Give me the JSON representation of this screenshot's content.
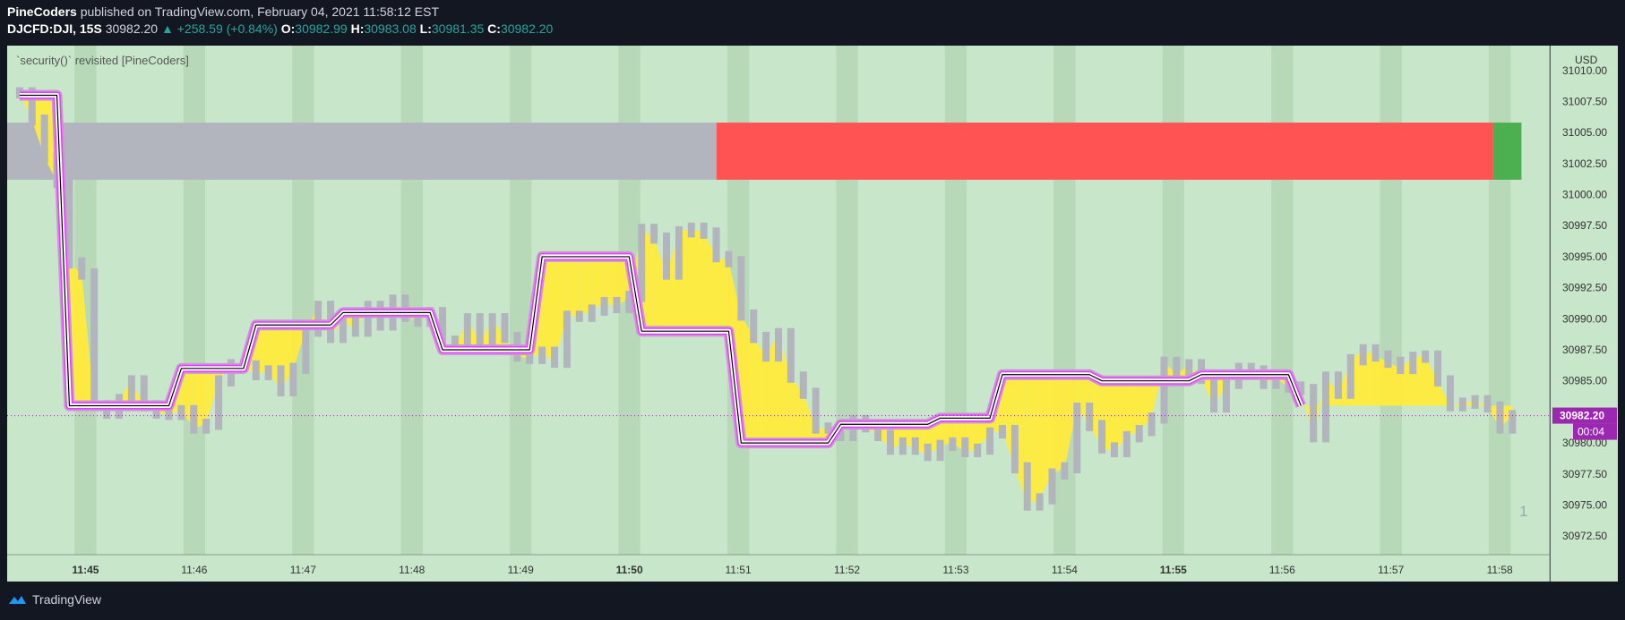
{
  "header": {
    "publisher": "PineCoders",
    "published_text": "published on TradingView.com, February 04, 2021 11:58:12 EST",
    "symbol": "DJCFD:DJI, 15S",
    "last_price": "30982.20",
    "change": "▲ +258.59 (+0.84%)",
    "open_label": "O:",
    "open": "30982.99",
    "high_label": "H:",
    "high": "30983.08",
    "low_label": "L:",
    "low": "30981.35",
    "close_label": "C:",
    "close": "30982.20"
  },
  "indicator_title": "`security()` revisited [PineCoders]",
  "price_scale": {
    "currency": "USD",
    "last_price_tag": "30982.20",
    "countdown_tag": "00:04"
  },
  "marker_label": "1",
  "footer": {
    "brand": "TradingView"
  },
  "colors": {
    "background": "#c8e6c9",
    "band": "#b7d9b8",
    "bars": "#b2b5be",
    "fill": "#ffeb3b",
    "line_outer": "#ce93d8",
    "line_mid": "#e040fb",
    "line_inner": "#ffffff",
    "line_core": "#000000",
    "status_gray": "#b2b5be",
    "status_red": "#ff5252",
    "status_green": "#4caf50",
    "price_tag": "#9c27b0"
  },
  "chart_data": {
    "type": "line",
    "title": "`security()` revisited [PineCoders]",
    "symbol": "DJCFD:DJI",
    "interval": "15S",
    "xlabel": "",
    "ylabel": "",
    "time_ticks": [
      {
        "label": "11:45",
        "bold": true
      },
      {
        "label": "11:46",
        "bold": false
      },
      {
        "label": "11:47",
        "bold": false
      },
      {
        "label": "11:48",
        "bold": false
      },
      {
        "label": "11:49",
        "bold": false
      },
      {
        "label": "11:50",
        "bold": true
      },
      {
        "label": "11:51",
        "bold": false
      },
      {
        "label": "11:52",
        "bold": false
      },
      {
        "label": "11:53",
        "bold": false
      },
      {
        "label": "11:54",
        "bold": false
      },
      {
        "label": "11:55",
        "bold": true
      },
      {
        "label": "11:56",
        "bold": false
      },
      {
        "label": "11:57",
        "bold": false
      },
      {
        "label": "11:58",
        "bold": false
      }
    ],
    "price_ticks": [
      "31010.00",
      "31007.50",
      "31005.00",
      "31002.50",
      "31000.00",
      "30997.50",
      "30995.00",
      "30992.50",
      "30990.00",
      "30987.50",
      "30985.00",
      "30980.00",
      "30977.50",
      "30975.00",
      "30972.50"
    ],
    "ylim": [
      30971,
      31012
    ],
    "xlim": [
      -3.6,
      67.3
    ],
    "last_price": 30982.2,
    "bar_close_series": [
      {
        "name": "price",
        "values": [
          31008.2,
          31006,
          31003,
          31001,
          30994.5,
          30993.6,
          30983,
          30982.4,
          30983.5,
          30985,
          30983,
          30982.4,
          30982.3,
          30982.6,
          30981.2,
          30981.5,
          30985,
          30986.3,
          30986.2,
          30985.5,
          30985.8,
          30984.2,
          30986,
          30989,
          30991,
          30988.5,
          30990,
          30989,
          30991,
          30989.5,
          30991.5,
          30990.2,
          30989.8,
          30990.5,
          30988.2,
          30987.6,
          30990,
          30988,
          30990,
          30988.5,
          30987,
          30986.8,
          30987.3,
          30986.5,
          30990.2,
          30990.2,
          30990.7,
          30991.3,
          30990.9,
          30991.8,
          30997.2,
          30996.5,
          30993.6,
          30997,
          30997.3,
          30996.9,
          30995,
          30994.6,
          30990.3,
          30988.5,
          30987,
          30988.8,
          30985.3,
          30984,
          30981.2,
          30981.2,
          30980.6,
          30981.8,
          30981.3,
          30980.6,
          30979.5,
          30980,
          30979.5,
          30979,
          30979.8,
          30980,
          30979.3,
          30979.5,
          30980.8,
          30981,
          30978,
          30975,
          30975.5,
          30977.5,
          30978,
          30982.8,
          30981.4,
          30979.6,
          30979.3,
          30980.5,
          30981,
          30982,
          30986.5,
          30985.5,
          30986.3,
          30985.2,
          30982.9,
          30984.8,
          30986,
          30985.8,
          30984.8,
          30985.2,
          30984.5,
          30984.3,
          30980.5,
          30985.3,
          30984,
          30986.7,
          30987.5,
          30987,
          30986.5,
          30986,
          30986.9,
          30987,
          30985,
          30983,
          30983.2,
          30983.4,
          30982.9,
          30981.2,
          30982.2
        ]
      },
      {
        "name": "line",
        "values": [
          31008,
          31008,
          31008,
          31008,
          30983,
          30983,
          30983,
          30983,
          30983,
          30983,
          30983,
          30983,
          30983,
          30986,
          30986,
          30986,
          30986,
          30986,
          30986,
          30989.5,
          30989.5,
          30989.5,
          30989.5,
          30989.5,
          30989.5,
          30989.5,
          30990.5,
          30990.5,
          30990.5,
          30990.5,
          30990.5,
          30990.5,
          30990.5,
          30990.5,
          30987.5,
          30987.5,
          30987.5,
          30987.5,
          30987.5,
          30987.5,
          30987.5,
          30987.5,
          30995,
          30995,
          30995,
          30995,
          30995,
          30995,
          30995,
          30995,
          30989,
          30989,
          30989,
          30989,
          30989,
          30989,
          30989,
          30989,
          30980,
          30980,
          30980,
          30980,
          30980,
          30980,
          30980,
          30980,
          30981.5,
          30981.5,
          30981.5,
          30981.5,
          30981.5,
          30981.5,
          30981.5,
          30981.5,
          30982,
          30982,
          30982,
          30982,
          30982,
          30985.5,
          30985.5,
          30985.5,
          30985.5,
          30985.5,
          30985.5,
          30985.5,
          30985.5,
          30985,
          30985,
          30985,
          30985,
          30985,
          30985,
          30985,
          30985,
          30985.5,
          30985.5,
          30985.5,
          30985.5,
          30985.5,
          30985.5,
          30985.5,
          30985.5,
          30983
        ]
      }
    ],
    "status_bands": [
      {
        "name": "gray",
        "from_x": -3.6,
        "to_x": 29,
        "value_from": 31001.2,
        "value_to": 31005.8
      },
      {
        "name": "red",
        "from_x": 29,
        "to_x": 64.7,
        "value_from": 31001.2,
        "value_to": 31005.8
      },
      {
        "name": "green",
        "from_x": 64.7,
        "to_x": 66.0,
        "value_from": 31001.2,
        "value_to": 31005.8
      }
    ]
  }
}
